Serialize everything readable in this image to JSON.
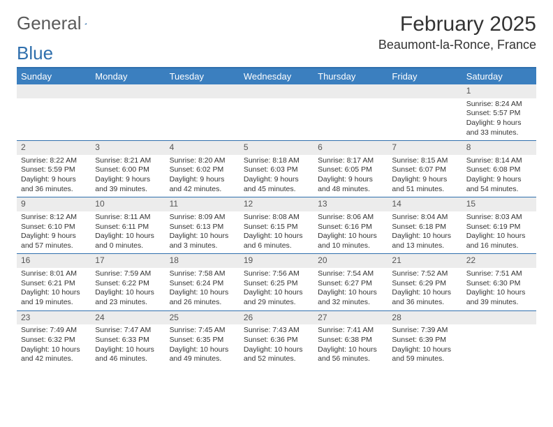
{
  "logo": {
    "text1": "General",
    "text2": "Blue"
  },
  "title": "February 2025",
  "location": "Beaumont-la-Ronce, France",
  "colors": {
    "header_bg": "#3b7fbf",
    "border": "#2f6fad",
    "daynum_bg": "#ececec",
    "text": "#333333"
  },
  "day_names": [
    "Sunday",
    "Monday",
    "Tuesday",
    "Wednesday",
    "Thursday",
    "Friday",
    "Saturday"
  ],
  "weeks": [
    [
      {
        "n": "",
        "sr": "",
        "ss": "",
        "dl": ""
      },
      {
        "n": "",
        "sr": "",
        "ss": "",
        "dl": ""
      },
      {
        "n": "",
        "sr": "",
        "ss": "",
        "dl": ""
      },
      {
        "n": "",
        "sr": "",
        "ss": "",
        "dl": ""
      },
      {
        "n": "",
        "sr": "",
        "ss": "",
        "dl": ""
      },
      {
        "n": "",
        "sr": "",
        "ss": "",
        "dl": ""
      },
      {
        "n": "1",
        "sr": "Sunrise: 8:24 AM",
        "ss": "Sunset: 5:57 PM",
        "dl": "Daylight: 9 hours and 33 minutes."
      }
    ],
    [
      {
        "n": "2",
        "sr": "Sunrise: 8:22 AM",
        "ss": "Sunset: 5:59 PM",
        "dl": "Daylight: 9 hours and 36 minutes."
      },
      {
        "n": "3",
        "sr": "Sunrise: 8:21 AM",
        "ss": "Sunset: 6:00 PM",
        "dl": "Daylight: 9 hours and 39 minutes."
      },
      {
        "n": "4",
        "sr": "Sunrise: 8:20 AM",
        "ss": "Sunset: 6:02 PM",
        "dl": "Daylight: 9 hours and 42 minutes."
      },
      {
        "n": "5",
        "sr": "Sunrise: 8:18 AM",
        "ss": "Sunset: 6:03 PM",
        "dl": "Daylight: 9 hours and 45 minutes."
      },
      {
        "n": "6",
        "sr": "Sunrise: 8:17 AM",
        "ss": "Sunset: 6:05 PM",
        "dl": "Daylight: 9 hours and 48 minutes."
      },
      {
        "n": "7",
        "sr": "Sunrise: 8:15 AM",
        "ss": "Sunset: 6:07 PM",
        "dl": "Daylight: 9 hours and 51 minutes."
      },
      {
        "n": "8",
        "sr": "Sunrise: 8:14 AM",
        "ss": "Sunset: 6:08 PM",
        "dl": "Daylight: 9 hours and 54 minutes."
      }
    ],
    [
      {
        "n": "9",
        "sr": "Sunrise: 8:12 AM",
        "ss": "Sunset: 6:10 PM",
        "dl": "Daylight: 9 hours and 57 minutes."
      },
      {
        "n": "10",
        "sr": "Sunrise: 8:11 AM",
        "ss": "Sunset: 6:11 PM",
        "dl": "Daylight: 10 hours and 0 minutes."
      },
      {
        "n": "11",
        "sr": "Sunrise: 8:09 AM",
        "ss": "Sunset: 6:13 PM",
        "dl": "Daylight: 10 hours and 3 minutes."
      },
      {
        "n": "12",
        "sr": "Sunrise: 8:08 AM",
        "ss": "Sunset: 6:15 PM",
        "dl": "Daylight: 10 hours and 6 minutes."
      },
      {
        "n": "13",
        "sr": "Sunrise: 8:06 AM",
        "ss": "Sunset: 6:16 PM",
        "dl": "Daylight: 10 hours and 10 minutes."
      },
      {
        "n": "14",
        "sr": "Sunrise: 8:04 AM",
        "ss": "Sunset: 6:18 PM",
        "dl": "Daylight: 10 hours and 13 minutes."
      },
      {
        "n": "15",
        "sr": "Sunrise: 8:03 AM",
        "ss": "Sunset: 6:19 PM",
        "dl": "Daylight: 10 hours and 16 minutes."
      }
    ],
    [
      {
        "n": "16",
        "sr": "Sunrise: 8:01 AM",
        "ss": "Sunset: 6:21 PM",
        "dl": "Daylight: 10 hours and 19 minutes."
      },
      {
        "n": "17",
        "sr": "Sunrise: 7:59 AM",
        "ss": "Sunset: 6:22 PM",
        "dl": "Daylight: 10 hours and 23 minutes."
      },
      {
        "n": "18",
        "sr": "Sunrise: 7:58 AM",
        "ss": "Sunset: 6:24 PM",
        "dl": "Daylight: 10 hours and 26 minutes."
      },
      {
        "n": "19",
        "sr": "Sunrise: 7:56 AM",
        "ss": "Sunset: 6:25 PM",
        "dl": "Daylight: 10 hours and 29 minutes."
      },
      {
        "n": "20",
        "sr": "Sunrise: 7:54 AM",
        "ss": "Sunset: 6:27 PM",
        "dl": "Daylight: 10 hours and 32 minutes."
      },
      {
        "n": "21",
        "sr": "Sunrise: 7:52 AM",
        "ss": "Sunset: 6:29 PM",
        "dl": "Daylight: 10 hours and 36 minutes."
      },
      {
        "n": "22",
        "sr": "Sunrise: 7:51 AM",
        "ss": "Sunset: 6:30 PM",
        "dl": "Daylight: 10 hours and 39 minutes."
      }
    ],
    [
      {
        "n": "23",
        "sr": "Sunrise: 7:49 AM",
        "ss": "Sunset: 6:32 PM",
        "dl": "Daylight: 10 hours and 42 minutes."
      },
      {
        "n": "24",
        "sr": "Sunrise: 7:47 AM",
        "ss": "Sunset: 6:33 PM",
        "dl": "Daylight: 10 hours and 46 minutes."
      },
      {
        "n": "25",
        "sr": "Sunrise: 7:45 AM",
        "ss": "Sunset: 6:35 PM",
        "dl": "Daylight: 10 hours and 49 minutes."
      },
      {
        "n": "26",
        "sr": "Sunrise: 7:43 AM",
        "ss": "Sunset: 6:36 PM",
        "dl": "Daylight: 10 hours and 52 minutes."
      },
      {
        "n": "27",
        "sr": "Sunrise: 7:41 AM",
        "ss": "Sunset: 6:38 PM",
        "dl": "Daylight: 10 hours and 56 minutes."
      },
      {
        "n": "28",
        "sr": "Sunrise: 7:39 AM",
        "ss": "Sunset: 6:39 PM",
        "dl": "Daylight: 10 hours and 59 minutes."
      },
      {
        "n": "",
        "sr": "",
        "ss": "",
        "dl": ""
      }
    ]
  ]
}
